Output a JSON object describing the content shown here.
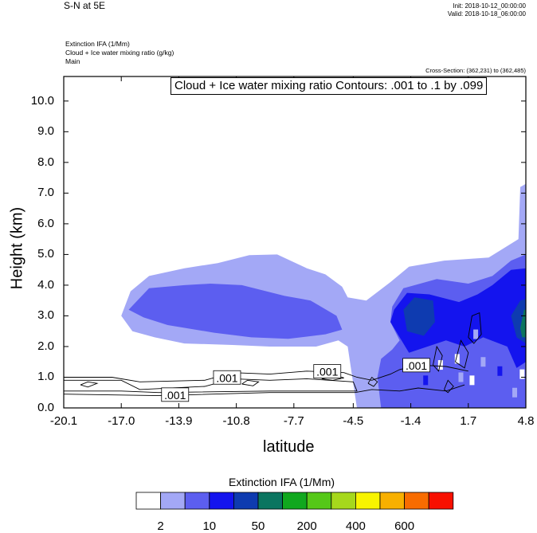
{
  "header": {
    "title": "S-N at 5E",
    "init": "Init: 2018-10-12_00:00:00",
    "valid": "Valid: 2018-10-18_06:00:00",
    "var1": "Extinction IFA   (1/Mm)",
    "var2": "Cloud + Ice water mixing ratio   (g/kg)",
    "var3": "Main",
    "cross_section": "Cross-Section: (362,231) to (362,485)",
    "contour_info": "Cloud + Ice water mixing ratio Contours: .001 to .1 by .099"
  },
  "chart_data": {
    "type": "heatmap",
    "xlabel": "latitude",
    "ylabel": "Height (km)",
    "xlim": [
      -20.1,
      4.8
    ],
    "ylim": [
      0.0,
      10.8
    ],
    "x_ticks": [
      "-20.1",
      "-17.0",
      "-13.9",
      "-10.8",
      "-7.7",
      "-4.5",
      "-1.4",
      "1.7",
      "4.8"
    ],
    "y_ticks": [
      "0.0",
      "1.0",
      "2.0",
      "3.0",
      "4.0",
      "5.0",
      "6.0",
      "7.0",
      "8.0",
      "9.0",
      "10.0"
    ],
    "legend": {
      "title": "Extinction IFA  (1/Mm)",
      "colors": [
        "#ffffff",
        "#a3a8f6",
        "#5c5ef0",
        "#1414ee",
        "#0e3bb0",
        "#0b7560",
        "#10a81e",
        "#55c818",
        "#a6d81c",
        "#f8f400",
        "#f8b000",
        "#f86c00",
        "#f81000"
      ],
      "labels": [
        "2",
        "10",
        "50",
        "200",
        "400",
        "600"
      ]
    },
    "contour_labels": [
      ".001",
      ".001",
      ".001",
      ".001"
    ],
    "fill_levels": [
      {
        "level": "2",
        "color": "#a3a8f6",
        "polygon": [
          [
            -17.0,
            3.0
          ],
          [
            -16.5,
            3.8
          ],
          [
            -15.5,
            4.3
          ],
          [
            -13.6,
            4.55
          ],
          [
            -11.8,
            4.72
          ],
          [
            -10.1,
            4.98
          ],
          [
            -8.6,
            5.0
          ],
          [
            -7.0,
            4.55
          ],
          [
            -6.0,
            4.35
          ],
          [
            -5.1,
            3.95
          ],
          [
            -4.8,
            3.6
          ],
          [
            -3.8,
            3.5
          ],
          [
            -2.5,
            4.1
          ],
          [
            -1.5,
            4.6
          ],
          [
            0.4,
            4.8
          ],
          [
            2.8,
            4.9
          ],
          [
            4.4,
            5.5
          ],
          [
            4.5,
            7.2
          ],
          [
            4.8,
            7.3
          ],
          [
            4.8,
            0.0
          ],
          [
            -4.3,
            0.0
          ],
          [
            -4.6,
            1.2
          ],
          [
            -4.8,
            2.0
          ],
          [
            -5.3,
            2.2
          ],
          [
            -6.5,
            2.0
          ],
          [
            -9.0,
            2.0
          ],
          [
            -11.0,
            2.05
          ],
          [
            -13.6,
            2.1
          ],
          [
            -15.2,
            2.3
          ],
          [
            -16.4,
            2.5
          ]
        ]
      },
      {
        "level": "10",
        "color": "#5c5ef0",
        "polygon": [
          [
            -16.6,
            3.2
          ],
          [
            -15.5,
            3.9
          ],
          [
            -13.6,
            4.0
          ],
          [
            -12.2,
            4.05
          ],
          [
            -10.5,
            4.0
          ],
          [
            -8.2,
            3.65
          ],
          [
            -6.8,
            3.5
          ],
          [
            -5.4,
            3.0
          ],
          [
            -5.1,
            2.55
          ],
          [
            -6.0,
            2.4
          ],
          [
            -8.0,
            2.25
          ],
          [
            -10.0,
            2.3
          ],
          [
            -12.0,
            2.45
          ],
          [
            -14.5,
            2.7
          ],
          [
            -15.8,
            2.95
          ]
        ]
      },
      {
        "level": "10",
        "color": "#5c5ef0",
        "polygon": [
          [
            -2.4,
            3.3
          ],
          [
            -1.8,
            3.9
          ],
          [
            0.0,
            4.2
          ],
          [
            1.7,
            4.05
          ],
          [
            3.0,
            4.3
          ],
          [
            4.0,
            4.8
          ],
          [
            4.8,
            5.0
          ],
          [
            4.8,
            0.0
          ],
          [
            -3.0,
            0.0
          ],
          [
            -3.2,
            1.0
          ],
          [
            -3.0,
            1.6
          ],
          [
            -2.4,
            1.9
          ],
          [
            -2.0,
            2.2
          ],
          [
            -2.5,
            2.8
          ]
        ]
      },
      {
        "level": "50",
        "color": "#1414ee",
        "polygon": [
          [
            -2.3,
            3.2
          ],
          [
            -1.6,
            3.75
          ],
          [
            -0.4,
            3.7
          ],
          [
            1.2,
            3.45
          ],
          [
            2.2,
            3.7
          ],
          [
            3.0,
            4.0
          ],
          [
            4.0,
            4.5
          ],
          [
            4.8,
            4.55
          ],
          [
            4.8,
            1.5
          ],
          [
            4.3,
            1.3
          ],
          [
            3.8,
            2.0
          ],
          [
            2.5,
            2.3
          ],
          [
            1.5,
            2.0
          ],
          [
            0.5,
            2.2
          ],
          [
            -1.5,
            1.8
          ],
          [
            -2.0,
            2.3
          ],
          [
            -2.5,
            2.8
          ]
        ]
      },
      {
        "level": "200",
        "color": "#0e3bb0",
        "polygon": [
          [
            -1.8,
            3.2
          ],
          [
            -1.2,
            3.6
          ],
          [
            -0.2,
            3.5
          ],
          [
            -0.1,
            2.8
          ],
          [
            -0.7,
            2.35
          ],
          [
            -1.6,
            2.5
          ]
        ]
      },
      {
        "level": "200",
        "color": "#0e3bb0",
        "polygon": [
          [
            4.0,
            3.0
          ],
          [
            4.5,
            3.5
          ],
          [
            4.8,
            3.55
          ],
          [
            4.8,
            2.1
          ],
          [
            4.3,
            2.3
          ]
        ]
      },
      {
        "level": "400",
        "color": "#0b7560",
        "polygon": [
          [
            4.5,
            2.6
          ],
          [
            4.7,
            3.2
          ],
          [
            4.8,
            3.2
          ],
          [
            4.8,
            2.3
          ],
          [
            4.6,
            2.3
          ]
        ]
      }
    ],
    "contours": [
      [
        [
          -20.1,
          1.0
        ],
        [
          -17.5,
          1.0
        ],
        [
          -16.0,
          0.85
        ],
        [
          -12.5,
          0.9
        ],
        [
          -11.0,
          1.15
        ],
        [
          -9.0,
          1.1
        ],
        [
          -7.0,
          1.2
        ],
        [
          -5.0,
          1.15
        ],
        [
          -4.3,
          1.0
        ],
        [
          -3.5,
          0.9
        ],
        [
          -2.5,
          1.1
        ],
        [
          -2.0,
          1.25
        ],
        [
          -1.0,
          1.4
        ],
        [
          0.5,
          1.35
        ],
        [
          1.7,
          1.2
        ]
      ],
      [
        [
          -20.1,
          0.9
        ],
        [
          -17.0,
          0.9
        ],
        [
          -16.0,
          0.6
        ],
        [
          -12.5,
          0.7
        ],
        [
          -11.0,
          0.95
        ],
        [
          -9.0,
          0.9
        ],
        [
          -7.0,
          0.95
        ],
        [
          -4.5,
          0.85
        ],
        [
          -4.3,
          0.55
        ],
        [
          -9.0,
          0.55
        ],
        [
          -15.0,
          0.5
        ],
        [
          -17.0,
          0.55
        ],
        [
          -20.1,
          0.55
        ]
      ],
      [
        [
          -20.1,
          0.45
        ],
        [
          -15.0,
          0.4
        ],
        [
          -9.0,
          0.5
        ],
        [
          -4.4,
          0.5
        ],
        [
          -3.5,
          0.6
        ],
        [
          -2.0,
          0.55
        ],
        [
          -1.0,
          0.65
        ],
        [
          0.5,
          0.55
        ],
        [
          1.5,
          0.75
        ]
      ],
      [
        [
          -19.2,
          0.75
        ],
        [
          -18.8,
          0.85
        ],
        [
          -18.3,
          0.8
        ],
        [
          -18.8,
          0.68
        ],
        [
          -19.2,
          0.75
        ]
      ],
      [
        [
          -10.5,
          0.78
        ],
        [
          -10.2,
          0.9
        ],
        [
          -9.6,
          0.85
        ],
        [
          -9.9,
          0.72
        ],
        [
          -10.5,
          0.78
        ]
      ],
      [
        [
          -6.2,
          0.95
        ],
        [
          -5.4,
          1.05
        ],
        [
          -5.0,
          0.98
        ],
        [
          -5.6,
          0.9
        ],
        [
          -6.2,
          0.95
        ]
      ],
      [
        [
          -3.7,
          0.8
        ],
        [
          -3.5,
          1.0
        ],
        [
          -3.2,
          0.85
        ],
        [
          -3.4,
          0.7
        ],
        [
          -3.7,
          0.8
        ]
      ],
      [
        [
          0.4,
          0.6
        ],
        [
          0.6,
          0.9
        ],
        [
          0.9,
          0.7
        ],
        [
          0.6,
          0.5
        ],
        [
          0.4,
          0.6
        ]
      ],
      [
        [
          1.7,
          2.3
        ],
        [
          1.9,
          3.0
        ],
        [
          2.3,
          3.1
        ],
        [
          2.4,
          2.4
        ],
        [
          2.0,
          2.1
        ],
        [
          1.7,
          2.3
        ]
      ],
      [
        [
          1.0,
          1.5
        ],
        [
          1.3,
          2.2
        ],
        [
          1.7,
          1.8
        ],
        [
          1.5,
          1.3
        ],
        [
          1.0,
          1.5
        ]
      ],
      [
        [
          -0.2,
          1.4
        ],
        [
          0.0,
          2.0
        ],
        [
          0.3,
          1.7
        ],
        [
          0.1,
          1.2
        ],
        [
          -0.2,
          1.4
        ]
      ]
    ],
    "speckles": [
      {
        "x": 1.1,
        "y": 1.6,
        "color": "#ffffff"
      },
      {
        "x": 1.3,
        "y": 1.0,
        "color": "#a3a8f6"
      },
      {
        "x": 2.1,
        "y": 2.4,
        "color": "#a3a8f6"
      },
      {
        "x": 2.5,
        "y": 1.5,
        "color": "#a3a8f6"
      },
      {
        "x": 1.9,
        "y": 0.9,
        "color": "#ffffff"
      },
      {
        "x": 0.2,
        "y": 1.4,
        "color": "#ffffff"
      },
      {
        "x": -0.6,
        "y": 0.9,
        "color": "#1414ee"
      },
      {
        "x": 3.4,
        "y": 1.2,
        "color": "#1414ee"
      },
      {
        "x": 4.6,
        "y": 1.1,
        "color": "#ffffff"
      },
      {
        "x": 4.2,
        "y": 0.5,
        "color": "#a3a8f6"
      }
    ]
  }
}
